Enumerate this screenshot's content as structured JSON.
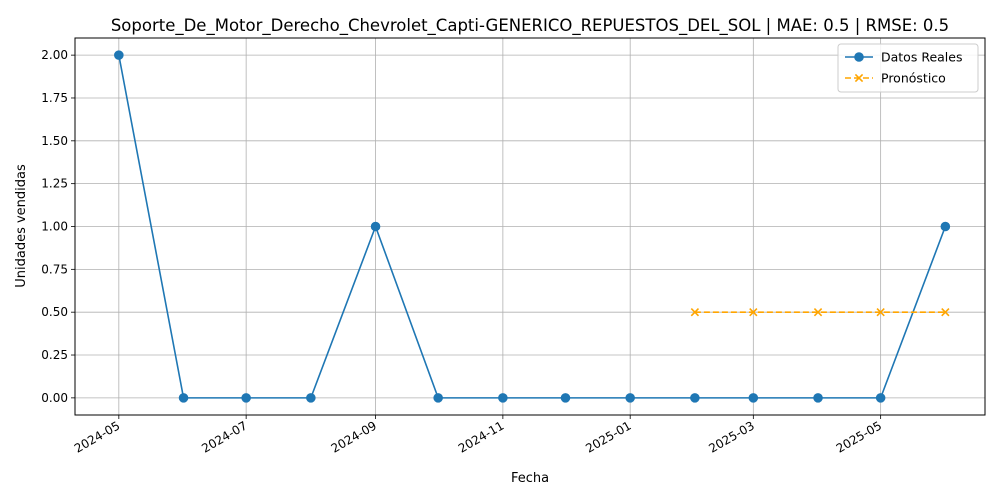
{
  "chart_data": {
    "type": "line",
    "title": "Soporte_De_Motor_Derecho_Chevrolet_Capti-GENERICO_REPUESTOS_DEL_SOL | MAE: 0.5 | RMSE: 0.5",
    "xlabel": "Fecha",
    "ylabel": "Unidades vendidas",
    "xlim": [
      "2024-04-10",
      "2025-06-20"
    ],
    "ylim": [
      -0.1,
      2.1
    ],
    "x_ticks": [
      "2024-05",
      "2024-07",
      "2024-09",
      "2024-11",
      "2025-01",
      "2025-03",
      "2025-05"
    ],
    "y_ticks": [
      "0.00",
      "0.25",
      "0.50",
      "0.75",
      "1.00",
      "1.25",
      "1.50",
      "1.75",
      "2.00"
    ],
    "grid": true,
    "legend_position": "top-right",
    "series": [
      {
        "name": "Datos Reales",
        "color": "#1f77b4",
        "style": "solid",
        "marker": "circle",
        "x": [
          "2024-05-01",
          "2024-06-01",
          "2024-07-01",
          "2024-08-01",
          "2024-09-01",
          "2024-10-01",
          "2024-11-01",
          "2024-12-01",
          "2025-01-01",
          "2025-02-01",
          "2025-03-01",
          "2025-04-01",
          "2025-05-01",
          "2025-06-01"
        ],
        "values": [
          2,
          0,
          0,
          0,
          1,
          0,
          0,
          0,
          0,
          0,
          0,
          0,
          0,
          1
        ]
      },
      {
        "name": "Pronóstico",
        "color": "#ffa500",
        "style": "dashed",
        "marker": "x",
        "x": [
          "2025-02-01",
          "2025-03-01",
          "2025-04-01",
          "2025-05-01",
          "2025-06-01"
        ],
        "values": [
          0.5,
          0.5,
          0.5,
          0.5,
          0.5
        ]
      }
    ]
  }
}
